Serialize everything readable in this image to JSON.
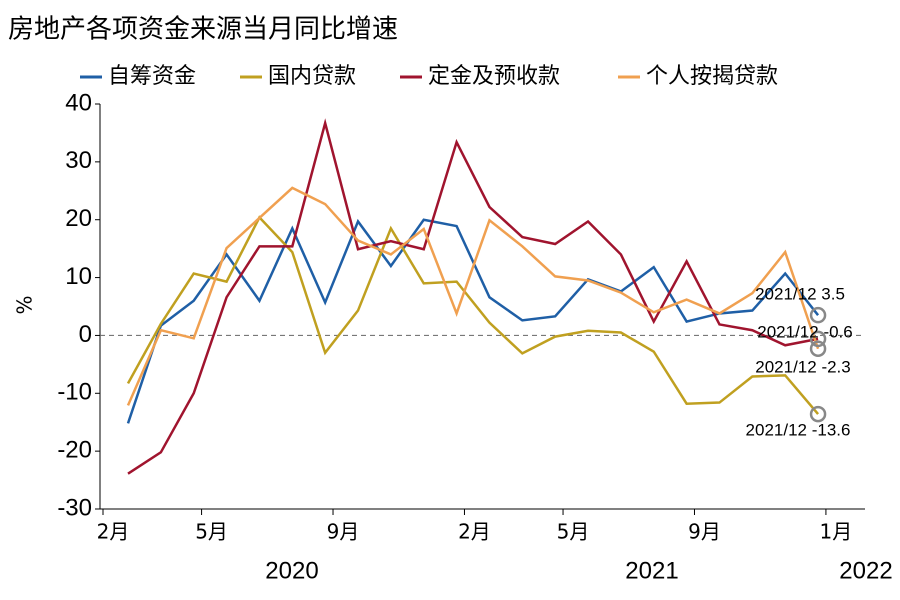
{
  "chart_data": {
    "type": "line",
    "title": "房地产各项资金来源当月同比增速",
    "y_label": "%",
    "categories": [
      "2月",
      null,
      null,
      "5月",
      null,
      null,
      null,
      "9月",
      null,
      null,
      null,
      "2月",
      null,
      null,
      "5月",
      null,
      null,
      null,
      "9月",
      null,
      null,
      null,
      "1月"
    ],
    "years": [
      "2020",
      "2021",
      "2022"
    ],
    "ylim": [
      -30,
      40
    ],
    "yticks": [
      -30,
      -20,
      -10,
      0,
      10,
      20,
      30,
      40
    ],
    "series": [
      {
        "name": "自筹资金",
        "color": "#1f5fa6",
        "values": [
          -15.2,
          1.7,
          6,
          14,
          6,
          18.5,
          5.7,
          19.7,
          12,
          20,
          18.9,
          6.6,
          2.6,
          3.3,
          9.7,
          7.6,
          11.8,
          2.4,
          3.8,
          4.3,
          10.7,
          3.5,
          null
        ]
      },
      {
        "name": "国内贷款",
        "color": "#c0a020",
        "values": [
          -8.3,
          2,
          10.7,
          9.3,
          20.4,
          14.4,
          -3,
          4.3,
          18.5,
          9,
          9.3,
          2.2,
          -3.1,
          -0.2,
          0.8,
          0.5,
          -2.8,
          -11.8,
          -11.6,
          -7.1,
          -6.9,
          -13.6,
          null
        ]
      },
      {
        "name": "定金及预收款",
        "color": "#a0142e",
        "values": [
          -23.9,
          -20.2,
          -10,
          6.6,
          15.4,
          15.4,
          36.7,
          14.9,
          16.3,
          14.9,
          33.4,
          22.2,
          17,
          15.8,
          19.7,
          14,
          2.4,
          12.8,
          1.9,
          0.9,
          -1.7,
          -0.6,
          null
        ]
      },
      {
        "name": "个人按揭贷款",
        "color": "#f0a050",
        "values": [
          -12.1,
          0.9,
          -0.5,
          15.1,
          20.3,
          25.5,
          22.7,
          16.4,
          14,
          18.4,
          3.8,
          19.9,
          15.4,
          10.2,
          9.5,
          7.4,
          4,
          6.2,
          3.8,
          7.3,
          14.4,
          -2.3,
          null
        ]
      }
    ],
    "annotations": [
      "2021/12 3.5",
      "2021/12 -0.6",
      "2021/12 -2.3",
      "2021/12 -13.6"
    ]
  }
}
